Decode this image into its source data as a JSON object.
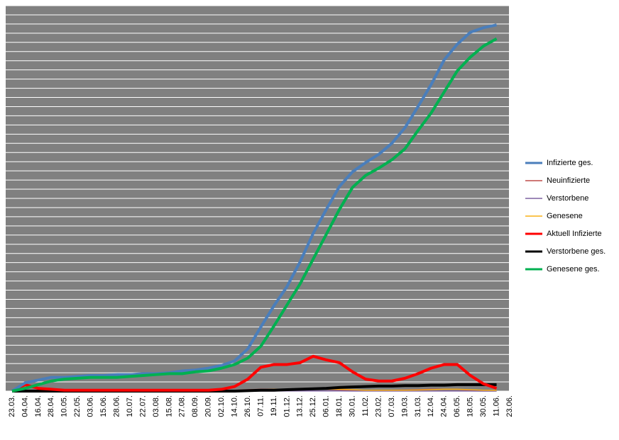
{
  "chart_data": {
    "type": "line",
    "categories": [
      "23.03.",
      "04.04.",
      "16.04.",
      "28.04.",
      "10.05.",
      "22.05.",
      "03.06.",
      "15.06.",
      "28.06.",
      "10.07.",
      "22.07.",
      "03.08.",
      "15.08.",
      "27.08.",
      "08.09.",
      "20.09.",
      "02.10.",
      "14.10.",
      "26.10.",
      "07.11.",
      "19.11.",
      "01.12.",
      "13.12.",
      "25.12.",
      "06.01.",
      "18.01.",
      "30.01.",
      "11.02.",
      "23.02.",
      "07.03.",
      "19.03.",
      "31.03.",
      "12.04.",
      "24.04.",
      "06.05.",
      "18.05.",
      "30.05.",
      "11.06.",
      "23.06."
    ],
    "ylim": [
      0,
      42
    ],
    "grid": true,
    "background": "#808080",
    "series": [
      {
        "name": "Infizierte ges.",
        "color": "#4a7ebb",
        "width": 4,
        "values": [
          0,
          0.9,
          1.2,
          1.5,
          1.5,
          1.6,
          1.7,
          1.7,
          1.8,
          1.8,
          1.9,
          1.9,
          2.0,
          2.2,
          2.3,
          2.5,
          2.8,
          3.3,
          4.6,
          7.0,
          9.3,
          11.4,
          14.1,
          17.2,
          19.8,
          22.3,
          23.9,
          24.9,
          25.8,
          27.0,
          28.7,
          31.0,
          33.4,
          36.1,
          37.8,
          39.1,
          39.6,
          39.9,
          null
        ]
      },
      {
        "name": "Neuinfizierte",
        "color": "#be4b48",
        "width": 1.5,
        "values": [
          0,
          0.05,
          0.02,
          0.01,
          0.01,
          0.01,
          0.01,
          0.01,
          0.01,
          0.01,
          0.01,
          0.01,
          0.01,
          0.02,
          0.02,
          0.03,
          0.05,
          0.1,
          0.15,
          0.2,
          0.2,
          0.2,
          0.2,
          0.25,
          0.2,
          0.15,
          0.1,
          0.1,
          0.1,
          0.1,
          0.12,
          0.15,
          0.2,
          0.2,
          0.2,
          0.1,
          0.05,
          0.03,
          null
        ]
      },
      {
        "name": "Verstorbene",
        "color": "#7d60a0",
        "width": 1.5,
        "values": [
          0,
          0,
          0,
          0,
          0,
          0,
          0,
          0,
          0,
          0,
          0,
          0,
          0,
          0,
          0,
          0,
          0,
          0,
          0.01,
          0.01,
          0.01,
          0.02,
          0.02,
          0.02,
          0.02,
          0.02,
          0.01,
          0.01,
          0.01,
          0.01,
          0.01,
          0.01,
          0.01,
          0.01,
          0.01,
          0.01,
          0,
          0,
          null
        ]
      },
      {
        "name": "Genesene",
        "color": "#f9b116",
        "width": 1.5,
        "values": [
          0,
          0.03,
          0.04,
          0.03,
          0.02,
          0.01,
          0.01,
          0.01,
          0.01,
          0.01,
          0.01,
          0.01,
          0.01,
          0.01,
          0.02,
          0.02,
          0.03,
          0.05,
          0.1,
          0.15,
          0.2,
          0.2,
          0.2,
          0.22,
          0.22,
          0.2,
          0.15,
          0.1,
          0.1,
          0.1,
          0.1,
          0.12,
          0.15,
          0.2,
          0.2,
          0.15,
          0.1,
          0.08,
          null
        ]
      },
      {
        "name": "Aktuell Infizierte",
        "color": "#ff0000",
        "width": 4,
        "values": [
          0,
          0.7,
          0.3,
          0.2,
          0.1,
          0.1,
          0.1,
          0.1,
          0.1,
          0.1,
          0.1,
          0.1,
          0.1,
          0.1,
          0.1,
          0.1,
          0.2,
          0.5,
          1.3,
          2.6,
          2.9,
          2.9,
          3.1,
          3.8,
          3.4,
          3.1,
          2.1,
          1.3,
          1.1,
          1.1,
          1.4,
          1.9,
          2.5,
          2.9,
          2.9,
          1.7,
          0.8,
          0.3,
          null
        ]
      },
      {
        "name": "Verstorbene ges.",
        "color": "#000000",
        "width": 4,
        "values": [
          0,
          0,
          0,
          0,
          0,
          0,
          0,
          0,
          0,
          0,
          0,
          0,
          0,
          0,
          0,
          0,
          0,
          0,
          0.05,
          0.1,
          0.1,
          0.15,
          0.2,
          0.25,
          0.3,
          0.4,
          0.45,
          0.5,
          0.55,
          0.55,
          0.6,
          0.6,
          0.65,
          0.65,
          0.7,
          0.7,
          0.7,
          0.7,
          null
        ]
      },
      {
        "name": "Genesene ges.",
        "color": "#00b050",
        "width": 4,
        "values": [
          0,
          0.3,
          0.7,
          1.1,
          1.3,
          1.4,
          1.5,
          1.5,
          1.5,
          1.6,
          1.7,
          1.8,
          1.9,
          1.9,
          2.1,
          2.2,
          2.5,
          2.9,
          3.6,
          4.9,
          7.1,
          9.4,
          11.7,
          14.4,
          17.1,
          19.8,
          22.2,
          23.5,
          24.3,
          25.2,
          26.4,
          28.4,
          30.3,
          32.6,
          34.9,
          36.4,
          37.6,
          38.4,
          null
        ]
      }
    ]
  }
}
